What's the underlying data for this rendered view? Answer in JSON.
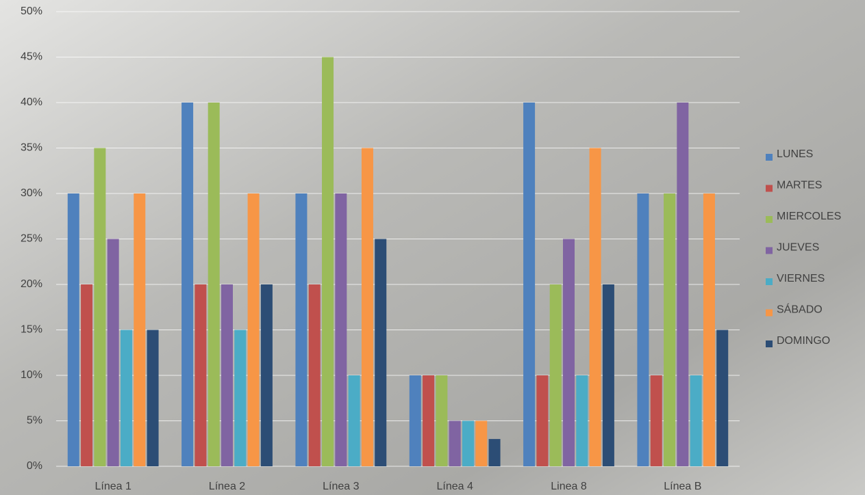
{
  "chart_data": {
    "type": "bar",
    "categories": [
      "Línea 1",
      "Línea 2",
      "Línea 3",
      "Línea 4",
      "Linea 8",
      "Línea B"
    ],
    "series": [
      {
        "name": "LUNES",
        "color": "#4f81bd",
        "values": [
          30,
          40,
          30,
          10,
          40,
          30
        ]
      },
      {
        "name": "MARTES",
        "color": "#c0504d",
        "values": [
          20,
          20,
          20,
          10,
          10,
          10
        ]
      },
      {
        "name": "MIERCOLES",
        "color": "#9bbb59",
        "values": [
          35,
          40,
          45,
          10,
          20,
          30
        ]
      },
      {
        "name": "JUEVES",
        "color": "#8064a2",
        "values": [
          25,
          20,
          30,
          5,
          25,
          40
        ]
      },
      {
        "name": "VIERNES",
        "color": "#4bacc6",
        "values": [
          15,
          15,
          10,
          5,
          10,
          10
        ]
      },
      {
        "name": "SÁBADO",
        "color": "#f79646",
        "values": [
          30,
          30,
          35,
          5,
          35,
          30
        ]
      },
      {
        "name": "DOMINGO",
        "color": "#2c4d75",
        "values": [
          15,
          20,
          25,
          3,
          20,
          15
        ]
      }
    ],
    "ylim": [
      0,
      50
    ],
    "yticks": [
      {
        "value": 0,
        "label": "0%"
      },
      {
        "value": 5,
        "label": "5%"
      },
      {
        "value": 10,
        "label": "10%"
      },
      {
        "value": 15,
        "label": "15%"
      },
      {
        "value": 20,
        "label": "20%"
      },
      {
        "value": 25,
        "label": "25%"
      },
      {
        "value": 30,
        "label": "30%"
      },
      {
        "value": 35,
        "label": "35%"
      },
      {
        "value": 40,
        "label": "40%"
      },
      {
        "value": 45,
        "label": "45%"
      },
      {
        "value": 50,
        "label": "50%"
      }
    ],
    "grid": true,
    "legend": "right"
  }
}
